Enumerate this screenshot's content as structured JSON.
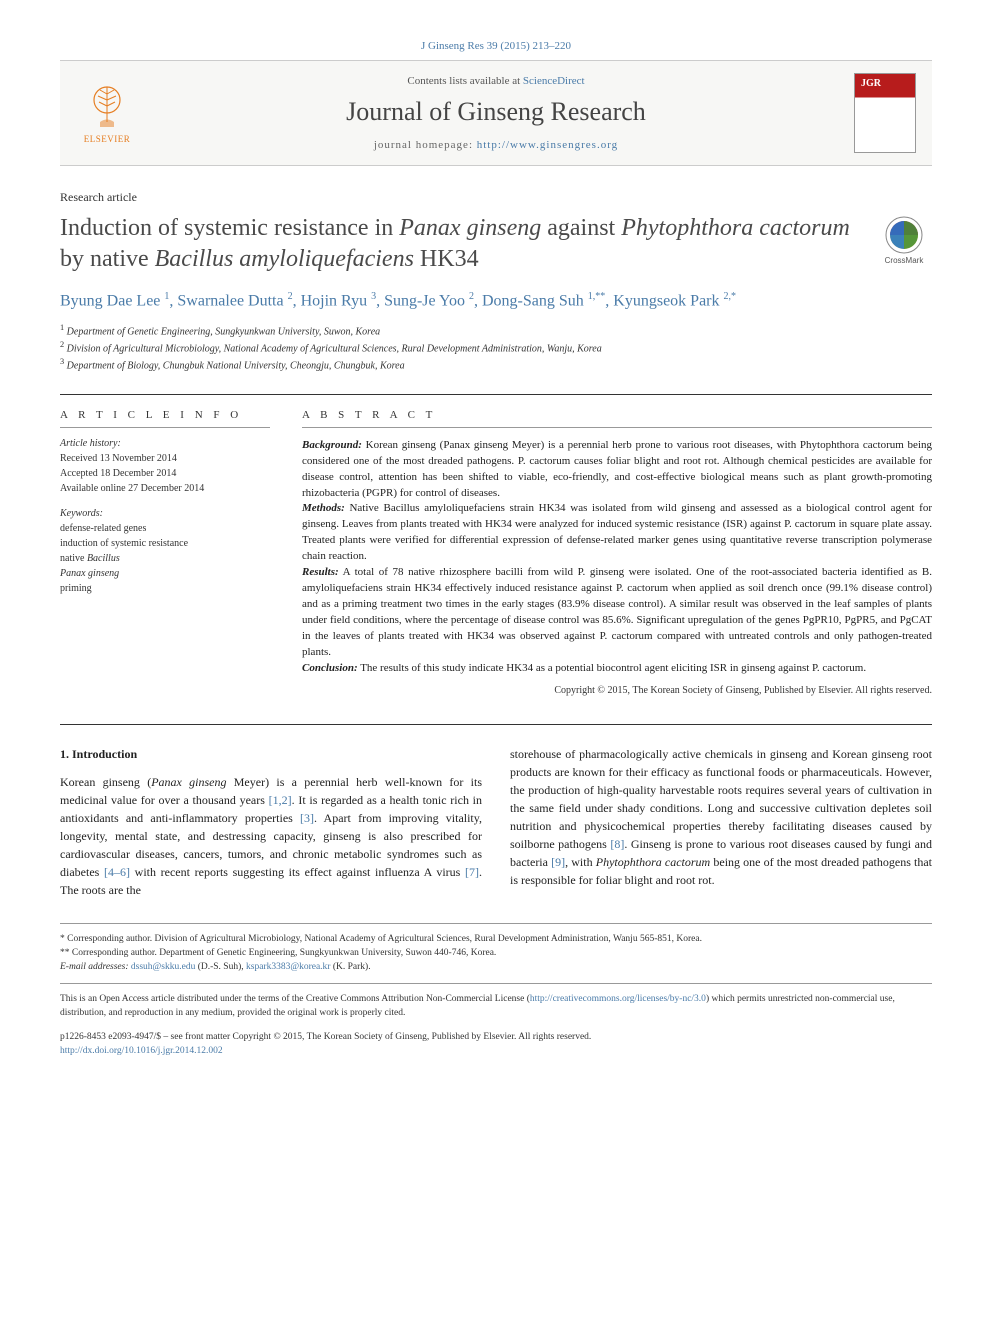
{
  "citation": {
    "text": "J Ginseng Res 39 (2015) 213–220"
  },
  "banner": {
    "contents_prefix": "Contents lists available at ",
    "contents_link": "ScienceDirect",
    "journal_name": "Journal of Ginseng Research",
    "homepage_prefix": "journal homepage: ",
    "homepage_url": "http://www.ginsengres.org",
    "elsevier_label": "ELSEVIER"
  },
  "article": {
    "type": "Research article",
    "title_parts": {
      "p1": "Induction of systemic resistance in ",
      "i1": "Panax ginseng",
      "p2": " against ",
      "i2": "Phytophthora cactorum",
      "p3": " by native ",
      "i3": "Bacillus amyloliquefaciens",
      "p4": " HK34"
    },
    "authors_html": "Byung Dae Lee <sup>1</sup>, Swarnalee Dutta <sup>2</sup>, Hojin Ryu <sup>3</sup>, Sung-Je Yoo <sup>2</sup>, Dong-Sang Suh <sup>1,**</sup>, Kyungseok Park <sup>2,*</sup>",
    "affiliations": [
      "Department of Genetic Engineering, Sungkyunkwan University, Suwon, Korea",
      "Division of Agricultural Microbiology, National Academy of Agricultural Sciences, Rural Development Administration, Wanju, Korea",
      "Department of Biology, Chungbuk National University, Cheongju, Chungbuk, Korea"
    ]
  },
  "info": {
    "heading": "A R T I C L E  I N F O",
    "history_label": "Article history:",
    "history": [
      "Received 13 November 2014",
      "Accepted 18 December 2014",
      "Available online 27 December 2014"
    ],
    "keywords_label": "Keywords:",
    "keywords": [
      "defense-related genes",
      "induction of systemic resistance",
      "native Bacillus",
      "Panax ginseng",
      "priming"
    ]
  },
  "abstract": {
    "heading": "A B S T R A C T",
    "background_label": "Background:",
    "background": " Korean ginseng (Panax ginseng Meyer) is a perennial herb prone to various root diseases, with Phytophthora cactorum being considered one of the most dreaded pathogens. P. cactorum causes foliar blight and root rot. Although chemical pesticides are available for disease control, attention has been shifted to viable, eco-friendly, and cost-effective biological means such as plant growth-promoting rhizobacteria (PGPR) for control of diseases.",
    "methods_label": "Methods:",
    "methods": " Native Bacillus amyloliquefaciens strain HK34 was isolated from wild ginseng and assessed as a biological control agent for ginseng. Leaves from plants treated with HK34 were analyzed for induced systemic resistance (ISR) against P. cactorum in square plate assay. Treated plants were verified for differential expression of defense-related marker genes using quantitative reverse transcription polymerase chain reaction.",
    "results_label": "Results:",
    "results": " A total of 78 native rhizosphere bacilli from wild P. ginseng were isolated. One of the root-associated bacteria identified as B. amyloliquefaciens strain HK34 effectively induced resistance against P. cactorum when applied as soil drench once (99.1% disease control) and as a priming treatment two times in the early stages (83.9% disease control). A similar result was observed in the leaf samples of plants under field conditions, where the percentage of disease control was 85.6%. Significant upregulation of the genes PgPR10, PgPR5, and PgCAT in the leaves of plants treated with HK34 was observed against P. cactorum compared with untreated controls and only pathogen-treated plants.",
    "conclusion_label": "Conclusion:",
    "conclusion": " The results of this study indicate HK34 as a potential biocontrol agent eliciting ISR in ginseng against P. cactorum.",
    "copyright": "Copyright © 2015, The Korean Society of Ginseng, Published by Elsevier. All rights reserved."
  },
  "body": {
    "section_number": "1.",
    "section_title": "Introduction",
    "col1": "Korean ginseng (Panax ginseng Meyer) is a perennial herb well-known for its medicinal value for over a thousand years [1,2]. It is regarded as a health tonic rich in antioxidants and anti-inflammatory properties [3]. Apart from improving vitality, longevity, mental state, and destressing capacity, ginseng is also prescribed for cardiovascular diseases, cancers, tumors, and chronic metabolic syndromes such as diabetes [4–6] with recent reports suggesting its effect against influenza A virus [7]. The roots are the",
    "col2": "storehouse of pharmacologically active chemicals in ginseng and Korean ginseng root products are known for their efficacy as functional foods or pharmaceuticals. However, the production of high-quality harvestable roots requires several years of cultivation in the same field under shady conditions. Long and successive cultivation depletes soil nutrition and physicochemical properties thereby facilitating diseases caused by soilborne pathogens [8]. Ginseng is prone to various root diseases caused by fungi and bacteria [9], with Phytophthora cactorum being one of the most dreaded pathogens that is responsible for foliar blight and root rot."
  },
  "footer": {
    "corr1": "* Corresponding author. Division of Agricultural Microbiology, National Academy of Agricultural Sciences, Rural Development Administration, Wanju 565-851, Korea.",
    "corr2": "** Corresponding author. Department of Genetic Engineering, Sungkyunkwan University, Suwon 440-746, Korea.",
    "email_label": "E-mail addresses:",
    "email1": "dssuh@skku.edu",
    "email1_name": " (D.-S. Suh), ",
    "email2": "kspark3383@korea.kr",
    "email2_name": " (K. Park).",
    "license": "This is an Open Access article distributed under the terms of the Creative Commons Attribution Non-Commercial License (http://creativecommons.org/licenses/by-nc/3.0) which permits unrestricted non-commercial use, distribution, and reproduction in any medium, provided the original work is properly cited.",
    "license_url": "http://creativecommons.org/licenses/by-nc/3.0",
    "issn": "p1226-8453 e2093-4947/$ – see front matter Copyright © 2015, The Korean Society of Ginseng, Published by Elsevier. All rights reserved.",
    "doi": "http://dx.doi.org/10.1016/j.jgr.2014.12.002"
  },
  "colors": {
    "link": "#4a7ba8",
    "title_gray": "#4a4a4a",
    "elsevier_orange": "#e67e22",
    "cover_red": "#b71c1c"
  }
}
